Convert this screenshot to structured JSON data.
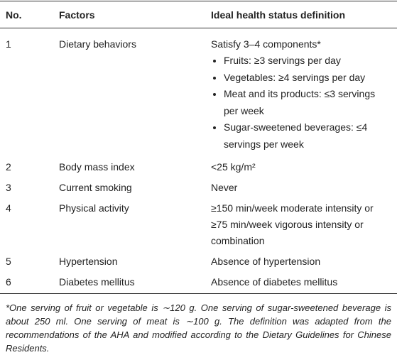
{
  "table": {
    "header": [
      "No.",
      "Factors",
      "Ideal health status definition"
    ],
    "rows": [
      {
        "no": "1",
        "factor": "Dietary behaviors",
        "definition": "Satisfy 3–4 components*",
        "items": [
          "Fruits: ≥3 servings per day",
          "Vegetables: ≥4 servings per day",
          "Meat and its products: ≤3 servings per week",
          "Sugar-sweetened beverages: ≤4 servings per week"
        ]
      },
      {
        "no": "2",
        "factor": "Body mass index",
        "definition": "<25 kg/m²"
      },
      {
        "no": "3",
        "factor": "Current smoking",
        "definition": "Never"
      },
      {
        "no": "4",
        "factor": "Physical activity",
        "definition": "≥150 min/week moderate intensity or ≥75 min/week vigorous intensity or combination"
      },
      {
        "no": "5",
        "factor": "Hypertension",
        "definition": "Absence of hypertension"
      },
      {
        "no": "6",
        "factor": "Diabetes mellitus",
        "definition": "Absence of diabetes mellitus"
      }
    ]
  },
  "footnote": "*One serving of fruit or vegetable is ∼120 g. One serving of sugar-sweetened beverage is about 250 ml. One serving of meat is ∼100 g. The definition was adapted from the recommendations of the AHA and modified according to the Dietary Guidelines for Chinese Residents."
}
